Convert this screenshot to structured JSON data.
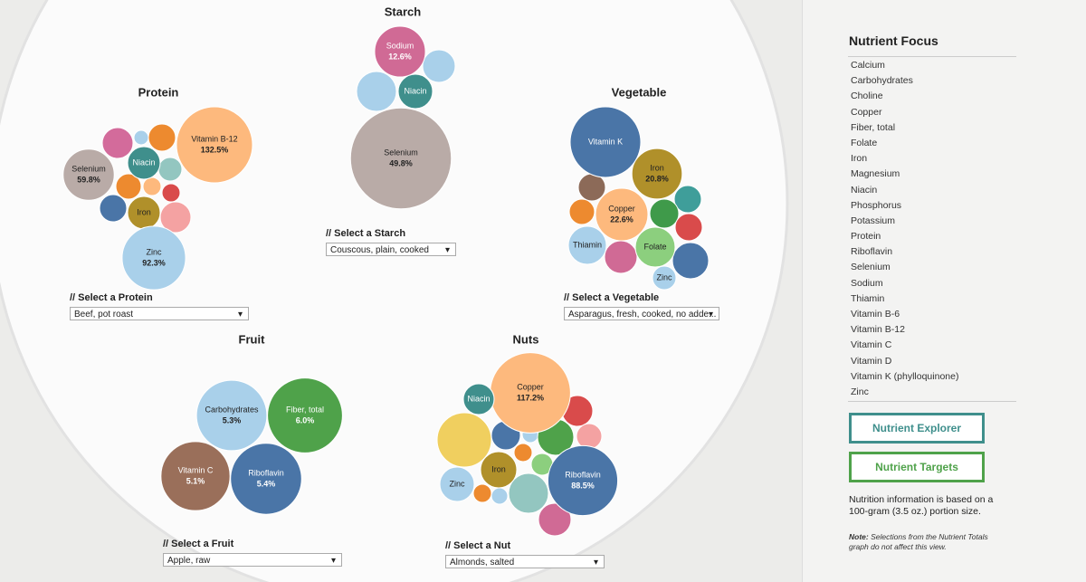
{
  "groups": [
    {
      "title": "Protein",
      "select_label": "// Select a Protein",
      "selected": "Beef, pot roast",
      "bubbles": [
        {
          "label": "Vitamin B-12",
          "value": 132.5,
          "value_label": "132.5%"
        },
        {
          "label": "Selenium",
          "value": 59.8,
          "value_label": "59.8%"
        },
        {
          "label": "Niacin"
        },
        {
          "label": "Iron"
        },
        {
          "label": "Zinc",
          "value": 92.3,
          "value_label": "92.3%"
        }
      ]
    },
    {
      "title": "Starch",
      "select_label": "// Select a Starch",
      "selected": "Couscous, plain, cooked",
      "bubbles": [
        {
          "label": "Sodium",
          "value": 12.6,
          "value_label": "12.6%"
        },
        {
          "label": "Niacin"
        },
        {
          "label": "Selenium",
          "value": 49.8,
          "value_label": "49.8%"
        }
      ]
    },
    {
      "title": "Vegetable",
      "select_label": "// Select a Vegetable",
      "selected": "Asparagus, fresh, cooked, no adde...",
      "bubbles": [
        {
          "label": "Vitamin K"
        },
        {
          "label": "Iron",
          "value": 20.8,
          "value_label": "20.8%"
        },
        {
          "label": "Copper",
          "value": 22.6,
          "value_label": "22.6%"
        },
        {
          "label": "Thiamin"
        },
        {
          "label": "Folate"
        },
        {
          "label": "Zinc"
        }
      ]
    },
    {
      "title": "Fruit",
      "select_label": "// Select a Fruit",
      "selected": "Apple, raw",
      "bubbles": [
        {
          "label": "Carbohydrates",
          "value": 5.3,
          "value_label": "5.3%"
        },
        {
          "label": "Fiber, total",
          "value": 6.0,
          "value_label": "6.0%"
        },
        {
          "label": "Vitamin C",
          "value": 5.1,
          "value_label": "5.1%"
        },
        {
          "label": "Riboflavin",
          "value": 5.4,
          "value_label": "5.4%"
        }
      ]
    },
    {
      "title": "Nuts",
      "select_label": "// Select a Nut",
      "selected": "Almonds, salted",
      "bubbles": [
        {
          "label": "Copper",
          "value": 117.2,
          "value_label": "117.2%"
        },
        {
          "label": "Niacin"
        },
        {
          "label": "Iron"
        },
        {
          "label": "Zinc"
        },
        {
          "label": "Riboflavin",
          "value": 88.5,
          "value_label": "88.5%"
        }
      ]
    }
  ],
  "sidebar": {
    "title": "Nutrient Focus",
    "nutrients": [
      "Calcium",
      "Carbohydrates",
      "Choline",
      "Copper",
      "Fiber, total",
      "Folate",
      "Iron",
      "Magnesium",
      "Niacin",
      "Phosphorus",
      "Potassium",
      "Protein",
      "Riboflavin",
      "Selenium",
      "Sodium",
      "Thiamin",
      "Vitamin B-6",
      "Vitamin B-12",
      "Vitamin C",
      "Vitamin D",
      "Vitamin K (phylloquinone)",
      "Zinc"
    ],
    "buttons": [
      "Nutrient Explorer",
      "Nutrient Targets"
    ],
    "info": "Nutrition information is based on a 100-gram (3.5 oz.) portion size.",
    "note_label": "Note:",
    "note": "Selections from the Nutrient Totals graph do not affect this view."
  }
}
